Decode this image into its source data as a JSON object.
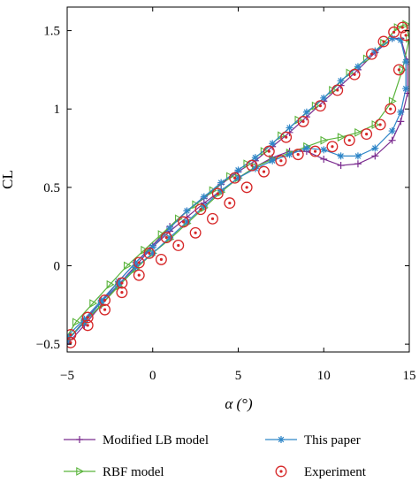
{
  "chart_data": {
    "type": "line",
    "title": "",
    "xlabel": "α (°)",
    "ylabel": "CL",
    "xlim": [
      -5,
      15
    ],
    "ylim": [
      -0.55,
      1.65
    ],
    "xticks": [
      -5,
      0,
      5,
      10,
      15
    ],
    "xtick_labels": [
      "−5",
      "0",
      "5",
      "10",
      "15"
    ],
    "yticks": [
      -0.5,
      0,
      0.5,
      1,
      1.5
    ],
    "ytick_labels": [
      "−0.5",
      "0",
      "0.5",
      "1",
      "1.5"
    ],
    "grid": false,
    "legend_placement": "bottom",
    "series": [
      {
        "name": "Modified LB model",
        "color": "#7b2c8f",
        "marker": "plus",
        "x": [
          -5,
          -4,
          -3,
          -2,
          -1,
          0,
          1,
          2,
          3,
          4,
          5,
          6,
          7,
          8,
          9,
          10,
          11,
          12,
          13,
          14,
          14.5,
          14.9,
          14.9,
          14.5,
          14,
          13,
          12,
          11,
          10,
          9,
          8,
          7,
          6,
          5,
          4,
          3,
          2,
          1,
          0,
          -1,
          -2,
          -3,
          -4,
          -5
        ],
        "y": [
          -0.5,
          -0.38,
          -0.25,
          -0.12,
          0.0,
          0.12,
          0.22,
          0.31,
          0.4,
          0.48,
          0.56,
          0.63,
          0.69,
          0.73,
          0.73,
          0.68,
          0.64,
          0.65,
          0.7,
          0.8,
          0.92,
          1.1,
          1.3,
          1.45,
          1.45,
          1.36,
          1.25,
          1.15,
          1.05,
          0.95,
          0.85,
          0.76,
          0.67,
          0.6,
          0.52,
          0.43,
          0.35,
          0.25,
          0.13,
          0.02,
          -0.1,
          -0.23,
          -0.35,
          -0.48
        ]
      },
      {
        "name": "RBF model",
        "color": "#5ab43c",
        "marker": "triangle-right",
        "x": [
          -5,
          -4,
          -3,
          -2,
          -1,
          0,
          1,
          2,
          3,
          4,
          5,
          6,
          7,
          8,
          9,
          10,
          11,
          12,
          13,
          14,
          14.6,
          15,
          14.8,
          14.3,
          13.5,
          12.5,
          11.5,
          10.5,
          9.5,
          8.5,
          7.5,
          6.5,
          5.5,
          4.5,
          3.5,
          2.5,
          1.5,
          0.5,
          -0.5,
          -1.5,
          -2.5,
          -3.5,
          -4.5,
          -5
        ],
        "y": [
          -0.47,
          -0.36,
          -0.25,
          -0.13,
          -0.02,
          0.08,
          0.17,
          0.27,
          0.37,
          0.47,
          0.56,
          0.63,
          0.68,
          0.72,
          0.76,
          0.8,
          0.82,
          0.85,
          0.9,
          1.05,
          1.25,
          1.45,
          1.54,
          1.52,
          1.42,
          1.32,
          1.23,
          1.12,
          1.02,
          0.93,
          0.83,
          0.73,
          0.65,
          0.57,
          0.48,
          0.39,
          0.3,
          0.2,
          0.1,
          0.0,
          -0.12,
          -0.24,
          -0.36,
          -0.45
        ]
      },
      {
        "name": "This paper",
        "color": "#2f86c8",
        "marker": "asterisk",
        "x": [
          -5,
          -4,
          -3,
          -2,
          -1,
          0,
          1,
          2,
          3,
          4,
          5,
          6,
          7,
          8,
          9,
          10,
          11,
          12,
          13,
          14,
          14.5,
          14.8,
          14.8,
          14.5,
          14,
          13,
          12,
          11,
          10,
          9,
          8,
          7,
          6,
          5,
          4,
          3,
          2,
          1,
          0,
          -1,
          -2,
          -3,
          -4,
          -5
        ],
        "y": [
          -0.48,
          -0.36,
          -0.23,
          -0.12,
          -0.01,
          0.08,
          0.18,
          0.28,
          0.38,
          0.48,
          0.56,
          0.62,
          0.67,
          0.71,
          0.75,
          0.74,
          0.7,
          0.7,
          0.75,
          0.86,
          0.98,
          1.13,
          1.3,
          1.44,
          1.45,
          1.37,
          1.27,
          1.18,
          1.07,
          0.98,
          0.88,
          0.78,
          0.69,
          0.61,
          0.53,
          0.44,
          0.35,
          0.24,
          0.12,
          0.02,
          -0.1,
          -0.22,
          -0.34,
          -0.45
        ]
      },
      {
        "name": "Experiment",
        "color": "#d62728",
        "marker": "circle-dot",
        "x": [
          -4.8,
          -3.8,
          -2.8,
          -1.8,
          -0.8,
          0.5,
          1.5,
          2.5,
          3.5,
          4.5,
          5.5,
          6.5,
          7.5,
          8.5,
          9.5,
          10.5,
          11.5,
          12.5,
          13.3,
          13.9,
          14.4,
          14.8,
          14.6,
          14.1,
          13.5,
          12.8,
          11.8,
          10.8,
          9.8,
          8.8,
          7.8,
          6.8,
          5.8,
          4.8,
          3.8,
          2.8,
          1.8,
          0.8,
          -0.2,
          -0.8,
          -1.8,
          -2.8,
          -3.8,
          -4.8
        ],
        "y": [
          -0.49,
          -0.38,
          -0.28,
          -0.17,
          -0.06,
          0.04,
          0.13,
          0.21,
          0.3,
          0.4,
          0.5,
          0.6,
          0.67,
          0.71,
          0.73,
          0.76,
          0.8,
          0.84,
          0.9,
          1.0,
          1.25,
          1.47,
          1.52,
          1.49,
          1.43,
          1.35,
          1.22,
          1.12,
          1.02,
          0.92,
          0.82,
          0.73,
          0.64,
          0.56,
          0.46,
          0.36,
          0.28,
          0.18,
          0.08,
          0.02,
          -0.11,
          -0.22,
          -0.33,
          -0.44
        ]
      }
    ]
  }
}
